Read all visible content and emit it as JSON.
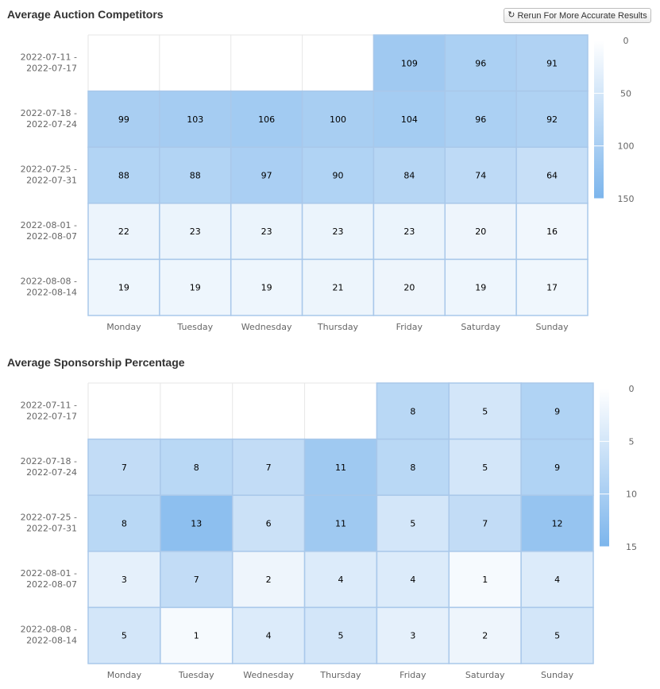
{
  "header": {
    "title": "Average Auction Competitors",
    "rerun_label": "Rerun For More Accurate Results",
    "rerun_icon": "refresh-icon"
  },
  "section2": {
    "title": "Average Sponsorship Percentage"
  },
  "colors": {
    "min": "#ffffff",
    "max": "#7cb5ec",
    "border": "#a9c8ea",
    "grid": "#e6e6e6"
  },
  "chart_data": [
    {
      "type": "heatmap",
      "title": "Average Auction Competitors",
      "x_categories": [
        "Monday",
        "Tuesday",
        "Wednesday",
        "Thursday",
        "Friday",
        "Saturday",
        "Sunday"
      ],
      "y_categories": [
        "2022-07-11 - 2022-07-17",
        "2022-07-18 - 2022-07-24",
        "2022-07-25 - 2022-07-31",
        "2022-08-01 - 2022-08-07",
        "2022-08-08 - 2022-08-14"
      ],
      "values": [
        [
          null,
          null,
          null,
          null,
          109,
          96,
          91
        ],
        [
          99,
          103,
          106,
          100,
          104,
          96,
          92
        ],
        [
          88,
          88,
          97,
          90,
          84,
          74,
          64
        ],
        [
          22,
          23,
          23,
          23,
          23,
          20,
          16
        ],
        [
          19,
          19,
          19,
          21,
          20,
          19,
          17
        ]
      ],
      "color_axis": {
        "min": 0,
        "max": 150,
        "ticks": [
          0,
          50,
          100,
          150
        ]
      }
    },
    {
      "type": "heatmap",
      "title": "Average Sponsorship Percentage",
      "x_categories": [
        "Monday",
        "Tuesday",
        "Wednesday",
        "Thursday",
        "Friday",
        "Saturday",
        "Sunday"
      ],
      "y_categories": [
        "2022-07-11 - 2022-07-17",
        "2022-07-18 - 2022-07-24",
        "2022-07-25 - 2022-07-31",
        "2022-08-01 - 2022-08-07",
        "2022-08-08 - 2022-08-14"
      ],
      "values": [
        [
          null,
          null,
          null,
          null,
          8,
          5,
          9
        ],
        [
          7,
          8,
          7,
          11,
          8,
          5,
          9
        ],
        [
          8,
          13,
          6,
          11,
          5,
          7,
          12
        ],
        [
          3,
          7,
          2,
          4,
          4,
          1,
          4
        ],
        [
          5,
          1,
          4,
          5,
          3,
          2,
          5
        ]
      ],
      "color_axis": {
        "min": 0,
        "max": 15,
        "ticks": [
          0,
          5,
          10,
          15
        ]
      }
    }
  ]
}
